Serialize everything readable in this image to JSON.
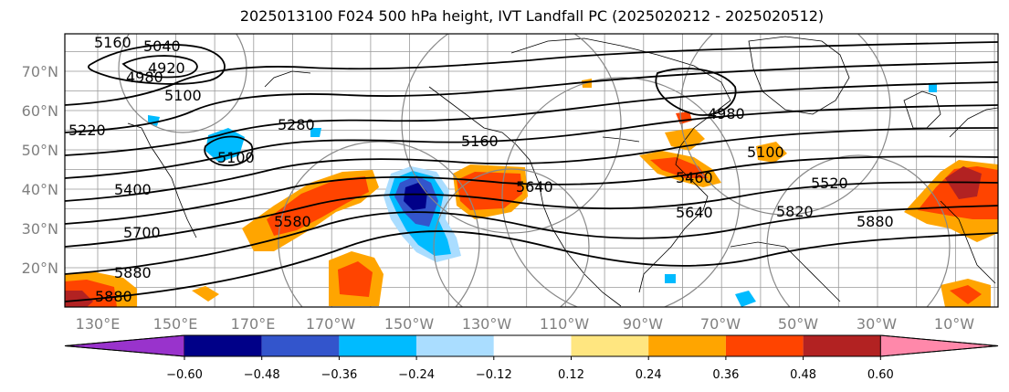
{
  "title": "2025013100 F024 500 hPa height, IVT Landfall PC (2025020212 - 2025020512)",
  "map": {
    "lat_ticks": [
      "20°N",
      "30°N",
      "40°N",
      "50°N",
      "60°N",
      "70°N"
    ],
    "lon_ticks": [
      "130°E",
      "150°E",
      "170°E",
      "170°W",
      "150°W",
      "130°W",
      "110°W",
      "90°W",
      "70°W",
      "50°W",
      "30°W",
      "10°W"
    ],
    "height_contour_labels": [
      "5160",
      "5040",
      "4920",
      "4980",
      "5100",
      "5220",
      "5280",
      "5100",
      "5400",
      "5580",
      "5700",
      "5880",
      "5880",
      "5640",
      "5160",
      "4980",
      "5100",
      "5460",
      "5520",
      "5820",
      "5880",
      "5640"
    ],
    "colors": {
      "neg_060": "#9933cc",
      "neg_048": "#000088",
      "neg_036": "#3355cc",
      "neg_024": "#00bbff",
      "neg_012": "#aaddff",
      "neutral": "#ffffff",
      "pos_012": "#ffe680",
      "pos_024": "#ffa500",
      "pos_036": "#ff4400",
      "pos_048": "#b22222",
      "pos_060": "#ff88aa"
    }
  },
  "colorbar": {
    "tick_labels": [
      "−0.60",
      "−0.48",
      "−0.36",
      "−0.24",
      "−0.12",
      "0.12",
      "0.24",
      "0.36",
      "0.48",
      "0.60"
    ],
    "bins": [
      "#9933cc",
      "#000088",
      "#3355cc",
      "#00bbff",
      "#aaddff",
      "#ffffff",
      "#ffe680",
      "#ffa500",
      "#ff4400",
      "#b22222",
      "#ff88aa"
    ]
  }
}
